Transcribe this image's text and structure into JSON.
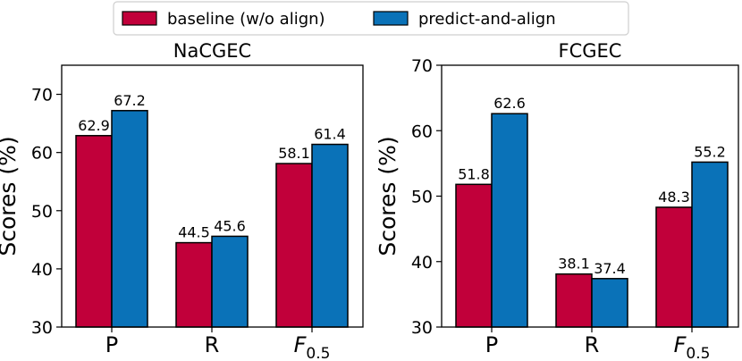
{
  "legend": {
    "items": [
      {
        "label": "baseline (w/o align)",
        "color": "#c1003a"
      },
      {
        "label": "predict-and-align",
        "color": "#0a72b8"
      }
    ],
    "placement": "top-center"
  },
  "chart_data": [
    {
      "type": "bar",
      "title": "NaCGEC",
      "ylabel": "Scores (%)",
      "xlabel": "",
      "categories": [
        "P",
        "R",
        "F0.5"
      ],
      "category_labels": [
        {
          "main": "P",
          "sub": ""
        },
        {
          "main": "R",
          "sub": ""
        },
        {
          "main": "F",
          "sub": "0.5"
        }
      ],
      "ylim": [
        30,
        75
      ],
      "yticks": [
        30,
        40,
        50,
        60,
        70
      ],
      "grid": false,
      "series": [
        {
          "name": "baseline (w/o align)",
          "color": "#c1003a",
          "values": [
            62.9,
            44.5,
            58.1
          ]
        },
        {
          "name": "predict-and-align",
          "color": "#0a72b8",
          "values": [
            67.2,
            45.6,
            61.4
          ]
        }
      ]
    },
    {
      "type": "bar",
      "title": "FCGEC",
      "ylabel": "Scores (%)",
      "xlabel": "",
      "categories": [
        "P",
        "R",
        "F0.5"
      ],
      "category_labels": [
        {
          "main": "P",
          "sub": ""
        },
        {
          "main": "R",
          "sub": ""
        },
        {
          "main": "F",
          "sub": "0.5"
        }
      ],
      "ylim": [
        30,
        70
      ],
      "yticks": [
        30,
        40,
        50,
        60,
        70
      ],
      "grid": false,
      "series": [
        {
          "name": "baseline (w/o align)",
          "color": "#c1003a",
          "values": [
            51.8,
            38.1,
            48.3
          ]
        },
        {
          "name": "predict-and-align",
          "color": "#0a72b8",
          "values": [
            62.6,
            37.4,
            55.2
          ]
        }
      ]
    }
  ]
}
